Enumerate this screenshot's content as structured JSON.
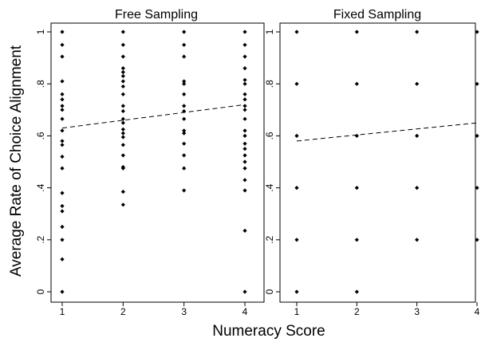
{
  "chart_data": {
    "type": "scatter",
    "ylabel": "Average Rate of Choice Alignment",
    "xlabel": "Numeracy Score",
    "ylim": [
      0,
      1
    ],
    "xlim": [
      1,
      4
    ],
    "x_ticks": [
      "1",
      "2",
      "3",
      "4"
    ],
    "y_ticks": [
      "0",
      ".2",
      ".4",
      ".6",
      ".8",
      "1"
    ],
    "panels": [
      {
        "title": "Free Sampling",
        "fit_line": {
          "x": [
            1,
            4
          ],
          "y": [
            0.63,
            0.72
          ]
        },
        "points": [
          {
            "x": 1,
            "y": 1.0
          },
          {
            "x": 1,
            "y": 0.95
          },
          {
            "x": 1,
            "y": 0.905
          },
          {
            "x": 1,
            "y": 0.81
          },
          {
            "x": 1,
            "y": 0.76
          },
          {
            "x": 1,
            "y": 0.74
          },
          {
            "x": 1,
            "y": 0.715
          },
          {
            "x": 1,
            "y": 0.7
          },
          {
            "x": 1,
            "y": 0.665
          },
          {
            "x": 1,
            "y": 0.62
          },
          {
            "x": 1,
            "y": 0.58
          },
          {
            "x": 1,
            "y": 0.565
          },
          {
            "x": 1,
            "y": 0.52
          },
          {
            "x": 1,
            "y": 0.475
          },
          {
            "x": 1,
            "y": 0.38
          },
          {
            "x": 1,
            "y": 0.33
          },
          {
            "x": 1,
            "y": 0.31
          },
          {
            "x": 1,
            "y": 0.25
          },
          {
            "x": 1,
            "y": 0.2
          },
          {
            "x": 1,
            "y": 0.125
          },
          {
            "x": 1,
            "y": 0.0
          },
          {
            "x": 2,
            "y": 1.0
          },
          {
            "x": 2,
            "y": 0.95
          },
          {
            "x": 2,
            "y": 0.905
          },
          {
            "x": 2,
            "y": 0.86
          },
          {
            "x": 2,
            "y": 0.845
          },
          {
            "x": 2,
            "y": 0.83
          },
          {
            "x": 2,
            "y": 0.81
          },
          {
            "x": 2,
            "y": 0.79
          },
          {
            "x": 2,
            "y": 0.76
          },
          {
            "x": 2,
            "y": 0.715
          },
          {
            "x": 2,
            "y": 0.695
          },
          {
            "x": 2,
            "y": 0.665
          },
          {
            "x": 2,
            "y": 0.65
          },
          {
            "x": 2,
            "y": 0.625
          },
          {
            "x": 2,
            "y": 0.61
          },
          {
            "x": 2,
            "y": 0.595
          },
          {
            "x": 2,
            "y": 0.565
          },
          {
            "x": 2,
            "y": 0.525
          },
          {
            "x": 2,
            "y": 0.48
          },
          {
            "x": 2,
            "y": 0.475
          },
          {
            "x": 2,
            "y": 0.385
          },
          {
            "x": 2,
            "y": 0.335
          },
          {
            "x": 3,
            "y": 1.0
          },
          {
            "x": 3,
            "y": 0.95
          },
          {
            "x": 3,
            "y": 0.905
          },
          {
            "x": 3,
            "y": 0.81
          },
          {
            "x": 3,
            "y": 0.8
          },
          {
            "x": 3,
            "y": 0.76
          },
          {
            "x": 3,
            "y": 0.715
          },
          {
            "x": 3,
            "y": 0.695
          },
          {
            "x": 3,
            "y": 0.665
          },
          {
            "x": 3,
            "y": 0.62
          },
          {
            "x": 3,
            "y": 0.61
          },
          {
            "x": 3,
            "y": 0.57
          },
          {
            "x": 3,
            "y": 0.525
          },
          {
            "x": 3,
            "y": 0.475
          },
          {
            "x": 3,
            "y": 0.39
          },
          {
            "x": 4,
            "y": 1.0
          },
          {
            "x": 4,
            "y": 0.95
          },
          {
            "x": 4,
            "y": 0.905
          },
          {
            "x": 4,
            "y": 0.86
          },
          {
            "x": 4,
            "y": 0.815
          },
          {
            "x": 4,
            "y": 0.8
          },
          {
            "x": 4,
            "y": 0.76
          },
          {
            "x": 4,
            "y": 0.74
          },
          {
            "x": 4,
            "y": 0.715
          },
          {
            "x": 4,
            "y": 0.7
          },
          {
            "x": 4,
            "y": 0.665
          },
          {
            "x": 4,
            "y": 0.62
          },
          {
            "x": 4,
            "y": 0.6
          },
          {
            "x": 4,
            "y": 0.57
          },
          {
            "x": 4,
            "y": 0.55
          },
          {
            "x": 4,
            "y": 0.525
          },
          {
            "x": 4,
            "y": 0.5
          },
          {
            "x": 4,
            "y": 0.475
          },
          {
            "x": 4,
            "y": 0.43
          },
          {
            "x": 4,
            "y": 0.39
          },
          {
            "x": 4,
            "y": 0.235
          },
          {
            "x": 4,
            "y": 0.0
          }
        ]
      },
      {
        "title": "Fixed Sampling",
        "fit_line": {
          "x": [
            1,
            4
          ],
          "y": [
            0.58,
            0.65
          ]
        },
        "points": [
          {
            "x": 1,
            "y": 1.0
          },
          {
            "x": 1,
            "y": 0.8
          },
          {
            "x": 1,
            "y": 0.6
          },
          {
            "x": 1,
            "y": 0.4
          },
          {
            "x": 1,
            "y": 0.2
          },
          {
            "x": 1,
            "y": 0.0
          },
          {
            "x": 2,
            "y": 1.0
          },
          {
            "x": 2,
            "y": 0.8
          },
          {
            "x": 2,
            "y": 0.6
          },
          {
            "x": 2,
            "y": 0.4
          },
          {
            "x": 2,
            "y": 0.2
          },
          {
            "x": 2,
            "y": 0.0
          },
          {
            "x": 3,
            "y": 1.0
          },
          {
            "x": 3,
            "y": 0.8
          },
          {
            "x": 3,
            "y": 0.6
          },
          {
            "x": 3,
            "y": 0.4
          },
          {
            "x": 3,
            "y": 0.2
          },
          {
            "x": 4,
            "y": 1.0
          },
          {
            "x": 4,
            "y": 0.8
          },
          {
            "x": 4,
            "y": 0.6
          },
          {
            "x": 4,
            "y": 0.4
          },
          {
            "x": 4,
            "y": 0.2
          }
        ]
      }
    ]
  }
}
